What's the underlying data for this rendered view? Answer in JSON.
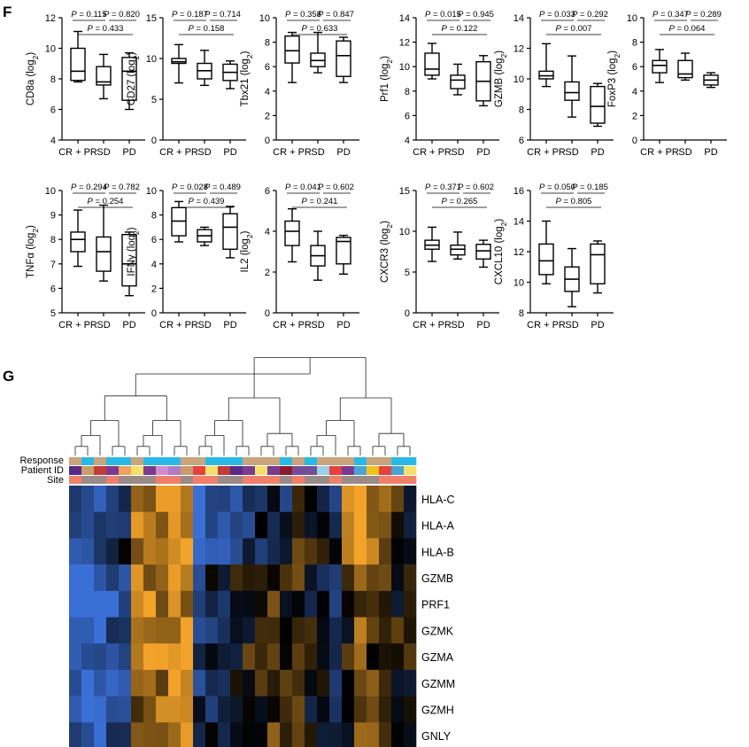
{
  "panels": {
    "F": "F",
    "G": "G"
  },
  "panel_F": {
    "categories": [
      "CR + PR",
      "SD",
      "PD"
    ],
    "charts": [
      {
        "ylabel": "CD8a (log2)",
        "ylabel_main": "CD8a (log",
        "ylabel_sub": "2",
        "ylabel_close": ")",
        "ylim": [
          4,
          12
        ],
        "ticks": [
          4,
          6,
          8,
          10,
          12
        ],
        "pvalues": [
          "P = 0.115",
          "P = 0.820",
          "P = 0.433"
        ],
        "boxes": [
          {
            "min": 7.8,
            "q1": 7.9,
            "median": 8.5,
            "q3": 10.0,
            "max": 11.1
          },
          {
            "min": 6.7,
            "q1": 7.6,
            "median": 7.8,
            "q3": 8.8,
            "max": 9.6
          },
          {
            "min": 6.0,
            "q1": 6.6,
            "median": 8.5,
            "q3": 9.4,
            "max": 9.7
          }
        ]
      },
      {
        "ylabel": "CD27 (log2)",
        "ylabel_main": "CD27 (log",
        "ylabel_sub": "2",
        "ylabel_close": ")",
        "ylim": [
          0,
          15
        ],
        "ticks": [
          0,
          5,
          10,
          15
        ],
        "pvalues": [
          "P = 0.187",
          "P = 0.714",
          "P = 0.158"
        ],
        "boxes": [
          {
            "min": 7.0,
            "q1": 9.4,
            "median": 9.6,
            "q3": 10.0,
            "max": 11.7
          },
          {
            "min": 6.7,
            "q1": 7.5,
            "median": 8.5,
            "q3": 9.4,
            "max": 11.0
          },
          {
            "min": 6.3,
            "q1": 7.3,
            "median": 8.3,
            "q3": 9.3,
            "max": 9.7
          }
        ]
      },
      {
        "ylabel": "Tbx21 (log2)",
        "ylabel_main": "Tbx21 (log",
        "ylabel_sub": "2",
        "ylabel_close": ")",
        "ylim": [
          0,
          10
        ],
        "ticks": [
          0,
          2,
          4,
          6,
          8,
          10
        ],
        "pvalues": [
          "P = 0.358",
          "P = 0.847",
          "P = 0.633"
        ],
        "boxes": [
          {
            "min": 4.7,
            "q1": 6.3,
            "median": 7.3,
            "q3": 8.5,
            "max": 8.8
          },
          {
            "min": 5.5,
            "q1": 6.0,
            "median": 6.5,
            "q3": 7.1,
            "max": 8.8
          },
          {
            "min": 4.7,
            "q1": 5.2,
            "median": 6.9,
            "q3": 8.1,
            "max": 8.4
          }
        ]
      },
      {
        "ylabel": "Prf1 (log2)",
        "ylabel_main": "Prf1 (log",
        "ylabel_sub": "2",
        "ylabel_close": ")",
        "ylim": [
          4,
          14
        ],
        "ticks": [
          4,
          6,
          8,
          10,
          12,
          14
        ],
        "pvalues": [
          "P = 0.015",
          "P = 0.945",
          "P = 0.122"
        ],
        "boxes": [
          {
            "min": 9.0,
            "q1": 9.3,
            "median": 9.8,
            "q3": 11.1,
            "max": 11.9
          },
          {
            "min": 7.7,
            "q1": 8.2,
            "median": 8.9,
            "q3": 9.3,
            "max": 10.2
          },
          {
            "min": 6.8,
            "q1": 7.2,
            "median": 8.8,
            "q3": 10.4,
            "max": 10.9
          }
        ]
      },
      {
        "ylabel": "GZMB (log2)",
        "ylabel_main": "GZMB (log",
        "ylabel_sub": "2",
        "ylabel_close": ")",
        "ylim": [
          6,
          14
        ],
        "ticks": [
          6,
          8,
          10,
          12,
          14
        ],
        "pvalues": [
          "P = 0.033",
          "P = 0.292",
          "P = 0.007"
        ],
        "boxes": [
          {
            "min": 9.5,
            "q1": 10.0,
            "median": 10.2,
            "q3": 10.5,
            "max": 12.3
          },
          {
            "min": 7.5,
            "q1": 8.6,
            "median": 9.1,
            "q3": 9.8,
            "max": 11.5
          },
          {
            "min": 6.9,
            "q1": 7.1,
            "median": 8.2,
            "q3": 9.5,
            "max": 9.7
          }
        ]
      },
      {
        "ylabel": "FoxP3 (log2)",
        "ylabel_main": "FoxP3 (log",
        "ylabel_sub": "2",
        "ylabel_close": ")",
        "ylim": [
          0,
          10
        ],
        "ticks": [
          0,
          2,
          4,
          6,
          8,
          10
        ],
        "pvalues": [
          "P = 0.347",
          "P = 0.289",
          "P = 0.064"
        ],
        "boxes": [
          {
            "min": 4.7,
            "q1": 5.5,
            "median": 6.1,
            "q3": 6.5,
            "max": 7.4
          },
          {
            "min": 4.9,
            "q1": 5.1,
            "median": 5.4,
            "q3": 6.5,
            "max": 7.1
          },
          {
            "min": 4.3,
            "q1": 4.5,
            "median": 4.9,
            "q3": 5.3,
            "max": 5.5
          }
        ]
      },
      {
        "ylabel": "TNFα (log2)",
        "ylabel_main": "TNFα (log",
        "ylabel_sub": "2",
        "ylabel_close": ")",
        "ylim": [
          5,
          10
        ],
        "ticks": [
          5,
          6,
          7,
          8,
          9,
          10
        ],
        "pvalues": [
          "P = 0.294",
          "P = 0.782",
          "P = 0.254"
        ],
        "boxes": [
          {
            "min": 6.9,
            "q1": 7.5,
            "median": 8.0,
            "q3": 8.3,
            "max": 9.2
          },
          {
            "min": 6.3,
            "q1": 6.7,
            "median": 7.5,
            "q3": 8.1,
            "max": 9.4
          },
          {
            "min": 5.7,
            "q1": 6.1,
            "median": 7.0,
            "q3": 8.2,
            "max": 8.3
          }
        ]
      },
      {
        "ylabel": "IFNγ (log2)",
        "ylabel_main": "IFNγ (log",
        "ylabel_sub": "2",
        "ylabel_close": ")",
        "ylim": [
          0,
          10
        ],
        "ticks": [
          0,
          2,
          4,
          6,
          8,
          10
        ],
        "pvalues": [
          "P = 0.028",
          "P = 0.489",
          "P = 0.439"
        ],
        "boxes": [
          {
            "min": 5.8,
            "q1": 6.3,
            "median": 7.5,
            "q3": 8.6,
            "max": 9.1
          },
          {
            "min": 5.5,
            "q1": 5.8,
            "median": 6.3,
            "q3": 6.8,
            "max": 7.0
          },
          {
            "min": 4.5,
            "q1": 5.2,
            "median": 7.0,
            "q3": 8.1,
            "max": 8.7
          }
        ]
      },
      {
        "ylabel": "IL2 (log2)",
        "ylabel_main": "IL2 (log",
        "ylabel_sub": "2",
        "ylabel_close": ")",
        "ylim": [
          0,
          6
        ],
        "ticks": [
          0,
          2,
          4,
          6
        ],
        "pvalues": [
          "P = 0.041",
          "P = 0.602",
          "P = 0.241"
        ],
        "boxes": [
          {
            "min": 2.5,
            "q1": 3.3,
            "median": 4.0,
            "q3": 4.5,
            "max": 5.1
          },
          {
            "min": 1.6,
            "q1": 2.3,
            "median": 2.8,
            "q3": 3.3,
            "max": 4.0
          },
          {
            "min": 1.9,
            "q1": 2.4,
            "median": 3.5,
            "q3": 3.7,
            "max": 3.8
          }
        ]
      },
      {
        "ylabel": "CXCR3 (log2)",
        "ylabel_main": "CXCR3 (log",
        "ylabel_sub": "2",
        "ylabel_close": ")",
        "ylim": [
          0,
          15
        ],
        "ticks": [
          0,
          5,
          10,
          15
        ],
        "pvalues": [
          "P = 0.371",
          "P = 0.602",
          "P = 0.265"
        ],
        "boxes": [
          {
            "min": 6.3,
            "q1": 7.8,
            "median": 8.3,
            "q3": 8.9,
            "max": 10.5
          },
          {
            "min": 6.6,
            "q1": 7.1,
            "median": 7.8,
            "q3": 8.3,
            "max": 9.9
          },
          {
            "min": 5.6,
            "q1": 6.6,
            "median": 7.6,
            "q3": 8.4,
            "max": 8.9
          }
        ]
      },
      {
        "ylabel": "CXCL10 (log2)",
        "ylabel_main": "CXCL10 (log",
        "ylabel_sub": "2",
        "ylabel_close": ")",
        "ylim": [
          8,
          16
        ],
        "ticks": [
          8,
          10,
          12,
          14,
          16
        ],
        "pvalues": [
          "P = 0.050",
          "P = 0.185",
          "P = 0.805"
        ],
        "boxes": [
          {
            "min": 9.9,
            "q1": 10.5,
            "median": 11.4,
            "q3": 12.5,
            "max": 14.0
          },
          {
            "min": 8.4,
            "q1": 9.4,
            "median": 10.2,
            "q3": 11.0,
            "max": 12.2
          },
          {
            "min": 9.3,
            "q1": 9.9,
            "median": 11.8,
            "q3": 12.5,
            "max": 12.7
          }
        ]
      }
    ]
  },
  "panel_G": {
    "row_labels": [
      "Response",
      "Patient ID",
      "Site"
    ],
    "genes": [
      "HLA-C",
      "HLA-A",
      "HLA-B",
      "GZMB",
      "PRF1",
      "GZMK",
      "GZMA",
      "GZMM",
      "GZMH",
      "GNLY"
    ],
    "colors": {
      "low": "#3a6fd6",
      "mid": "#000000",
      "high": "#f3a32a",
      "response": [
        "#29b9e6",
        "#caa47c"
      ],
      "site": [
        "#f07f6a",
        "#9a8a88"
      ]
    }
  },
  "chart_data": [
    {
      "type": "box",
      "panel": "F",
      "categories": [
        "CR + PR",
        "SD",
        "PD"
      ],
      "series_note": "Box plots per gene: min, q1, median, q3, max (log2 expression); see panel_F.charts for values"
    },
    {
      "type": "heatmap",
      "panel": "G",
      "y": [
        "HLA-C",
        "HLA-A",
        "HLA-B",
        "GZMB",
        "PRF1",
        "GZMK",
        "GZMA",
        "GZMM",
        "GZMH",
        "GNLY"
      ],
      "annotation_rows": [
        "Response",
        "Patient ID",
        "Site"
      ]
    }
  ]
}
